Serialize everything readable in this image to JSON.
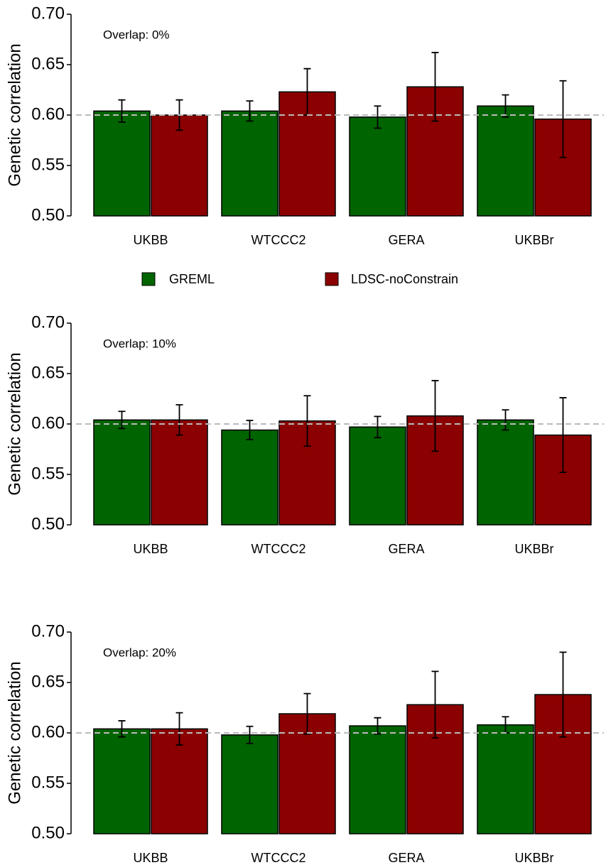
{
  "chart_data": [
    {
      "type": "bar",
      "annotation": "Overlap: 0%",
      "ylabel": "Genetic correlation",
      "categories": [
        "UKBB",
        "WTCCC2",
        "GERA",
        "UKBBr"
      ],
      "series": [
        {
          "name": "GREML",
          "color": "#006400",
          "values": [
            0.604,
            0.604,
            0.598,
            0.609
          ],
          "errors": [
            0.011,
            0.01,
            0.011,
            0.011
          ]
        },
        {
          "name": "LDSC-noConstrain",
          "color": "#8b0000",
          "values": [
            0.6,
            0.623,
            0.628,
            0.596
          ],
          "errors": [
            0.015,
            0.023,
            0.034,
            0.038
          ]
        }
      ],
      "ylim": [
        0.5,
        0.7
      ],
      "yticks": [
        {
          "value": 0.5,
          "label": "0.50"
        },
        {
          "value": 0.55,
          "label": "0.55"
        },
        {
          "value": 0.6,
          "label": "0.60"
        },
        {
          "value": 0.65,
          "label": "0.65"
        },
        {
          "value": 0.7,
          "label": "0.70"
        }
      ],
      "hline": 0.6
    },
    {
      "type": "bar",
      "annotation": "Overlap: 10%",
      "ylabel": "Genetic correlation",
      "categories": [
        "UKBB",
        "WTCCC2",
        "GERA",
        "UKBBr"
      ],
      "series": [
        {
          "color": "#006400",
          "values": [
            0.604,
            0.594,
            0.597,
            0.604
          ],
          "errors": [
            0.0085,
            0.0095,
            0.0105,
            0.01
          ]
        },
        {
          "color": "#8b0000",
          "values": [
            0.604,
            0.603,
            0.608,
            0.589
          ],
          "errors": [
            0.015,
            0.025,
            0.035,
            0.037
          ]
        }
      ],
      "ylim": [
        0.5,
        0.7
      ],
      "yticks": [
        {
          "value": 0.5,
          "label": "0.50"
        },
        {
          "value": 0.55,
          "label": "0.55"
        },
        {
          "value": 0.6,
          "label": "0.60"
        },
        {
          "value": 0.65,
          "label": "0.65"
        },
        {
          "value": 0.7,
          "label": "0.70"
        }
      ],
      "hline": 0.6
    },
    {
      "type": "bar",
      "annotation": "Overlap: 20%",
      "ylabel": "Genetic correlation",
      "categories": [
        "UKBB",
        "WTCCC2",
        "GERA",
        "UKBBr"
      ],
      "series": [
        {
          "color": "#006400",
          "values": [
            0.604,
            0.598,
            0.607,
            0.608
          ],
          "errors": [
            0.008,
            0.0085,
            0.008,
            0.008
          ]
        },
        {
          "color": "#8b0000",
          "values": [
            0.604,
            0.619,
            0.628,
            0.638
          ],
          "errors": [
            0.016,
            0.02,
            0.033,
            0.042
          ]
        }
      ],
      "ylim": [
        0.5,
        0.7
      ],
      "yticks": [
        {
          "value": 0.5,
          "label": "0.50"
        },
        {
          "value": 0.55,
          "label": "0.55"
        },
        {
          "value": 0.6,
          "label": "0.60"
        },
        {
          "value": 0.65,
          "label": "0.65"
        },
        {
          "value": 0.7,
          "label": "0.70"
        }
      ],
      "hline": 0.6
    }
  ]
}
